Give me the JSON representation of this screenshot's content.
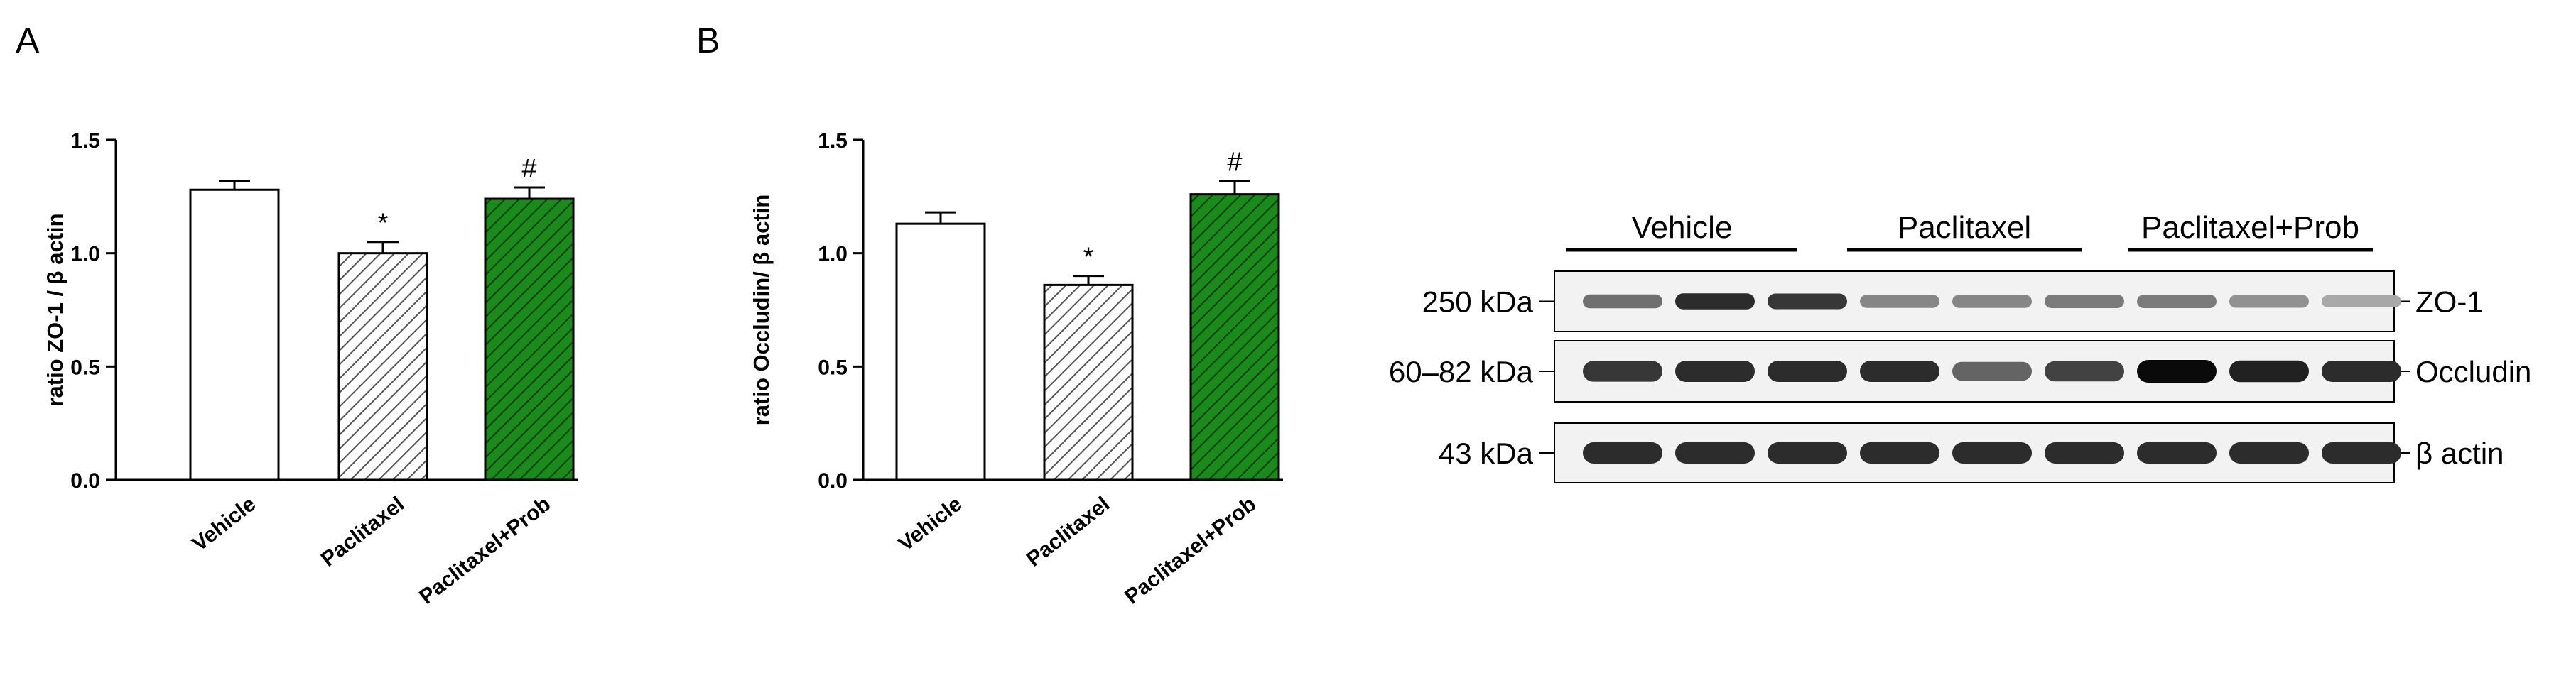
{
  "panel_labels": [
    "A",
    "B"
  ],
  "colors": {
    "vehicle_fill": "#ffffff",
    "paclitaxel_hatch": "#555555",
    "prob_fill": "#1a8a1a",
    "prob_hatch": "#0b3d0b",
    "axis": "#000000"
  },
  "chart_data": [
    {
      "panel": "A",
      "type": "bar",
      "ylabel": "ratio ZO-1 / β actin",
      "ylim": [
        0,
        1.5
      ],
      "yticks": [
        "0.0",
        "0.5",
        "1.0",
        "1.5"
      ],
      "categories": [
        "Vehicle",
        "Paclitaxel",
        "Paclitaxel+Prob"
      ],
      "values": [
        1.28,
        1.0,
        1.24
      ],
      "errors": [
        0.04,
        0.05,
        0.05
      ],
      "annotations": [
        "",
        "*",
        "#"
      ],
      "fills": [
        "white",
        "gray-hatch",
        "green-hatch"
      ],
      "grid": false
    },
    {
      "panel": "B",
      "type": "bar",
      "ylabel": "ratio Occludin/ β actin",
      "ylim": [
        0,
        1.5
      ],
      "yticks": [
        "0.0",
        "0.5",
        "1.0",
        "1.5"
      ],
      "categories": [
        "Vehicle",
        "Paclitaxel",
        "Paclitaxel+Prob"
      ],
      "values": [
        1.13,
        0.86,
        1.26
      ],
      "errors": [
        0.05,
        0.04,
        0.06
      ],
      "annotations": [
        "",
        "*",
        "#"
      ],
      "fills": [
        "white",
        "gray-hatch",
        "green-hatch"
      ],
      "grid": false
    }
  ],
  "blot": {
    "groups": [
      "Vehicle",
      "Paclitaxel",
      "Paclitaxel+Prob"
    ],
    "rows": [
      {
        "kda": "250 kDa",
        "protein": "ZO-1",
        "intensities": [
          0.55,
          0.85,
          0.8,
          0.45,
          0.45,
          0.5,
          0.5,
          0.4,
          0.3
        ]
      },
      {
        "kda": "60–82 kDa",
        "protein": "Occludin",
        "intensities": [
          0.8,
          0.85,
          0.85,
          0.85,
          0.6,
          0.75,
          1.0,
          0.9,
          0.85
        ]
      },
      {
        "kda": "43 kDa",
        "protein": "β actin",
        "intensities": [
          0.85,
          0.85,
          0.85,
          0.85,
          0.85,
          0.85,
          0.85,
          0.85,
          0.85
        ]
      }
    ]
  }
}
